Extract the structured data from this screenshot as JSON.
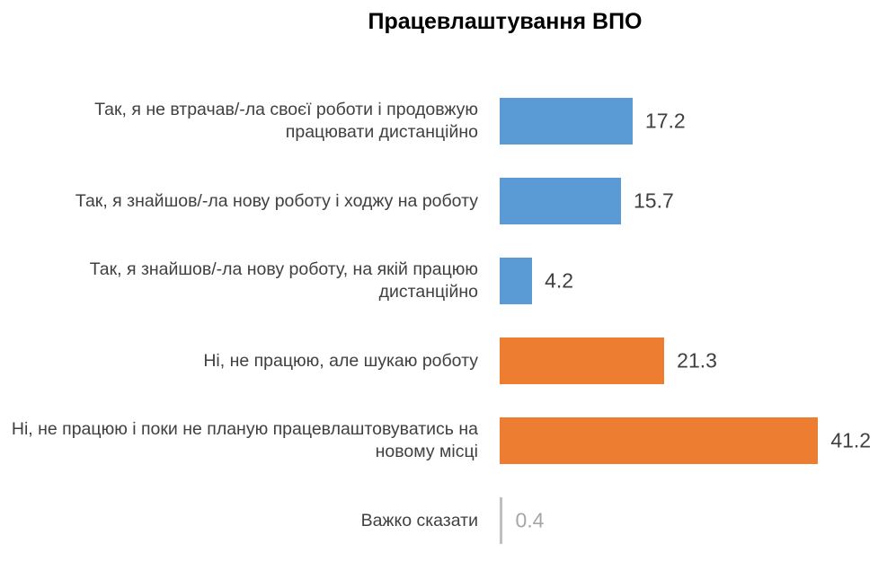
{
  "chart_data": {
    "type": "bar",
    "orientation": "horizontal",
    "title": "Працевлаштування ВПО",
    "categories": [
      "Так, я не втрачав/-ла своєї роботи і продовжую працювати дистанційно",
      "Так, я знайшов/-ла нову роботу і ходжу на роботу",
      "Так, я знайшов/-ла нову роботу, на якій працюю дистанційно",
      "Ні, не працюю, але шукаю роботу",
      "Ні, не працюю і поки не планую працевлаштовуватись на новому місці",
      "Важко сказати"
    ],
    "values": [
      17.2,
      15.7,
      4.2,
      21.3,
      41.2,
      0.4
    ],
    "colors": [
      "#5b9bd5",
      "#5b9bd5",
      "#5b9bd5",
      "#ed7d31",
      "#ed7d31",
      "#bfbfbf"
    ]
  }
}
